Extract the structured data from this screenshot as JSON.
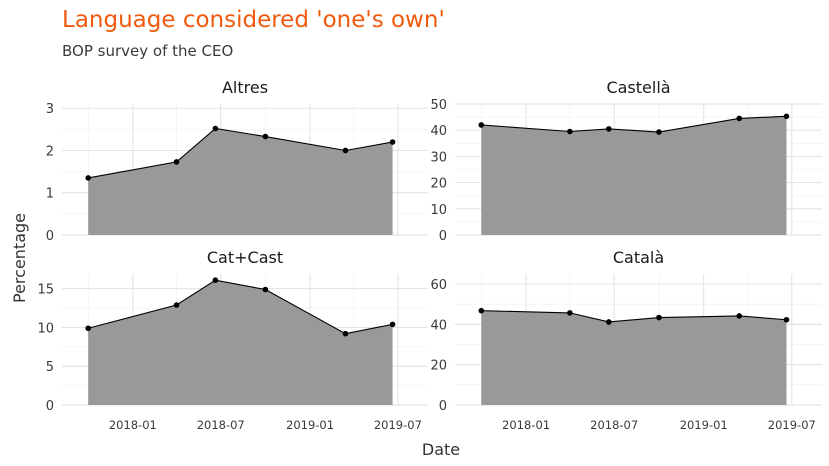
{
  "chart_title": "Language considered 'one's own'",
  "chart_subtitle": "BOP survey of the CEO",
  "chart_data": {
    "type": "area",
    "title": "Language considered 'one's own'",
    "subtitle": "BOP survey of the CEO",
    "xlabel": "Date",
    "ylabel": "Percentage",
    "x_ticks": [
      "2018-01",
      "2018-07",
      "2019-01",
      "2019-07"
    ],
    "x": [
      "2017-10-01",
      "2018-04-01",
      "2018-06-20",
      "2018-10-01",
      "2019-03-15",
      "2019-06-20"
    ],
    "grid": true,
    "fill_color": "#999999",
    "line_color": "#000000",
    "panels": [
      {
        "name": "Altres",
        "values": [
          1.35,
          1.73,
          2.52,
          2.33,
          2.0,
          2.2
        ],
        "yticks": [
          0,
          1,
          2,
          3
        ],
        "ylim": [
          0,
          3.1
        ]
      },
      {
        "name": "Castellà",
        "values": [
          42,
          39.5,
          40.5,
          39.3,
          44.5,
          45.3
        ],
        "yticks": [
          0,
          10,
          20,
          30,
          40,
          50
        ],
        "ylim": [
          0,
          50
        ]
      },
      {
        "name": "Cat+Cast",
        "values": [
          9.9,
          12.9,
          16.1,
          14.9,
          9.2,
          10.4
        ],
        "yticks": [
          0,
          5,
          10,
          15
        ],
        "ylim": [
          0,
          16.9
        ]
      },
      {
        "name": "Català",
        "values": [
          46.8,
          45.7,
          41.2,
          43.4,
          44.2,
          42.3
        ],
        "yticks": [
          0,
          20,
          40,
          60
        ],
        "ylim": [
          0,
          65
        ]
      }
    ]
  }
}
